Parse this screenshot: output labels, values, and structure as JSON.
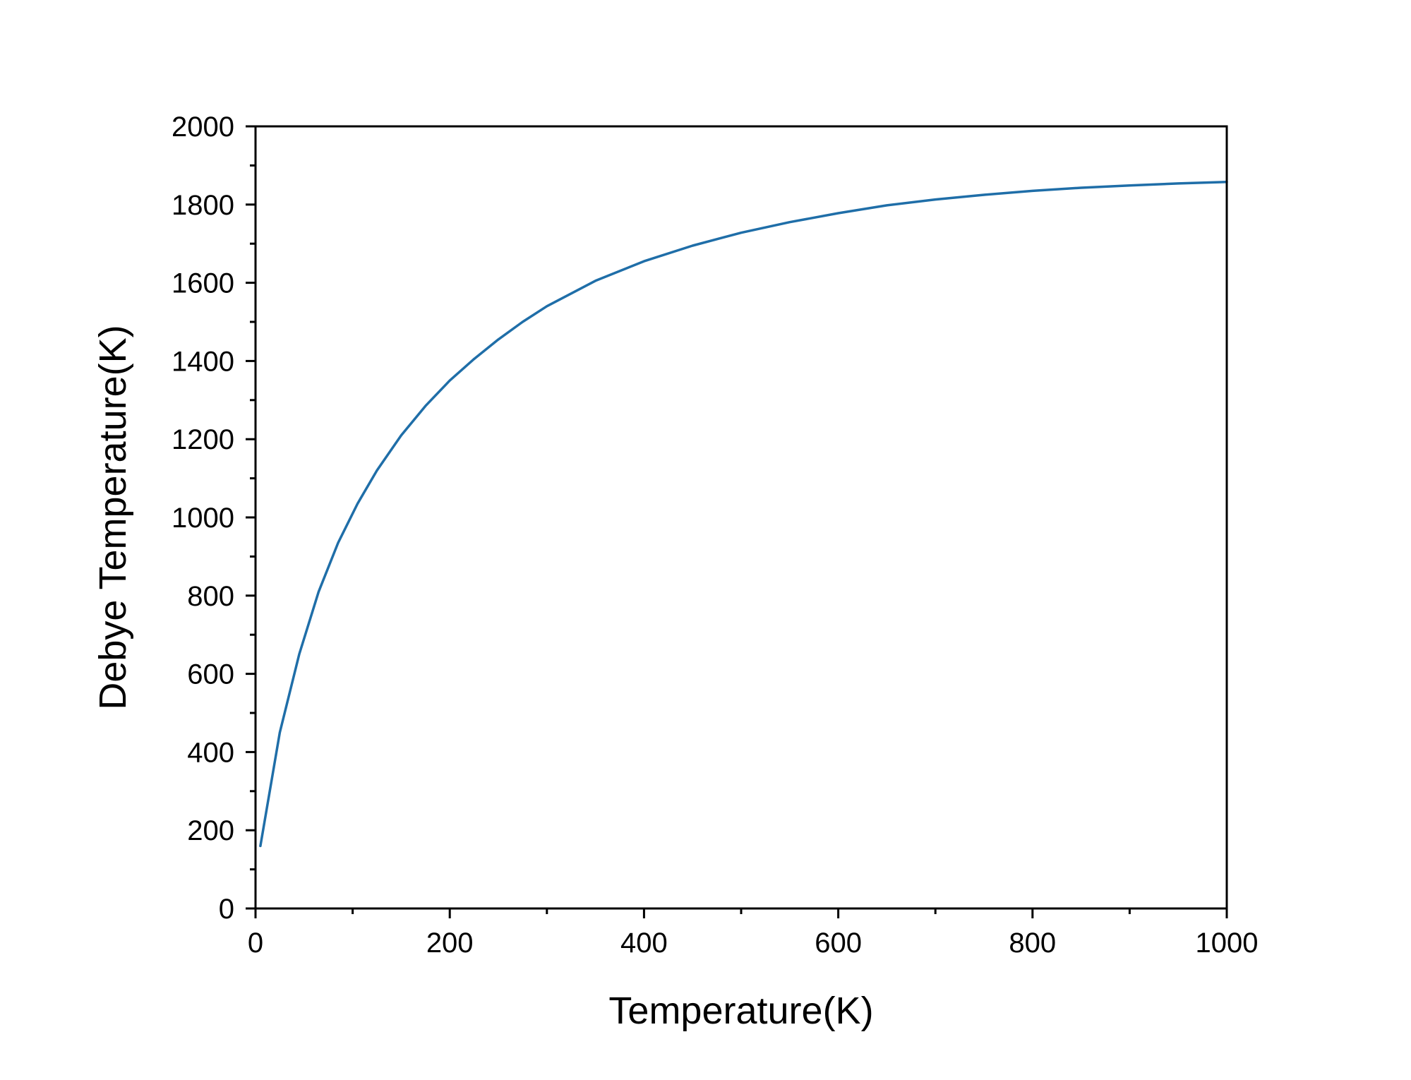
{
  "chart_data": {
    "type": "line",
    "title": "",
    "xlabel": "Temperature(K)",
    "ylabel": "Debye Temperature(K)",
    "xlim": [
      0,
      1000
    ],
    "ylim": [
      0,
      2000
    ],
    "x_ticks": [
      0,
      200,
      400,
      600,
      800,
      1000
    ],
    "y_ticks": [
      0,
      200,
      400,
      600,
      800,
      1000,
      1200,
      1400,
      1600,
      1800,
      2000
    ],
    "x_minor_step": 100,
    "y_minor_step": 100,
    "grid": false,
    "legend": "none",
    "series": [
      {
        "color": "#1f6ea8",
        "x": [
          5,
          25,
          45,
          65,
          85,
          105,
          125,
          150,
          175,
          200,
          225,
          250,
          275,
          300,
          350,
          400,
          450,
          500,
          550,
          600,
          650,
          700,
          750,
          800,
          850,
          900,
          950,
          1000
        ],
        "y": [
          160,
          450,
          650,
          810,
          935,
          1035,
          1120,
          1210,
          1285,
          1350,
          1405,
          1455,
          1500,
          1540,
          1605,
          1655,
          1695,
          1728,
          1755,
          1778,
          1798,
          1813,
          1825,
          1835,
          1843,
          1849,
          1854,
          1858
        ]
      }
    ]
  }
}
